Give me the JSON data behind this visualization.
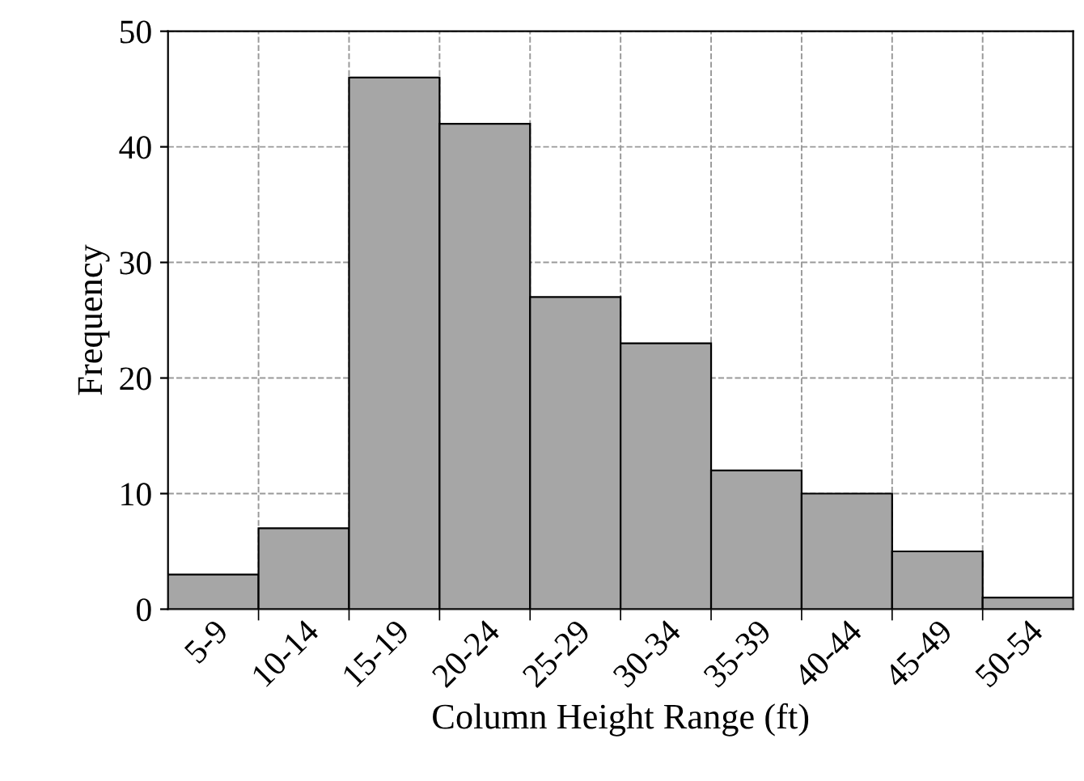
{
  "chart_data": {
    "type": "bar",
    "xlabel": "Column Height Range (ft)",
    "ylabel": "Frequency",
    "categories": [
      "5-9",
      "10-14",
      "15-19",
      "20-24",
      "25-29",
      "30-34",
      "35-39",
      "40-44",
      "45-49",
      "50-54"
    ],
    "values": [
      3,
      7,
      46,
      42,
      27,
      23,
      12,
      10,
      5,
      1
    ],
    "color": "#a6a6a6",
    "ylim": [
      0,
      50
    ],
    "yticks": [
      0,
      10,
      20,
      30,
      40,
      50
    ],
    "grid": true
  }
}
